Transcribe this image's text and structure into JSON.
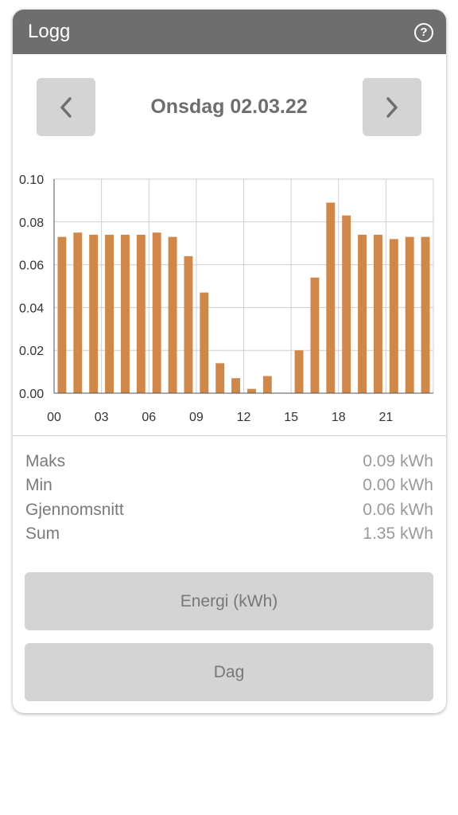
{
  "header": {
    "title": "Logg",
    "help_glyph": "?"
  },
  "nav": {
    "date": "Onsdag 02.03.22",
    "prev_icon": "chevron-left-icon",
    "next_icon": "chevron-right-icon"
  },
  "colors": {
    "bar": "#d0874a",
    "header_bg": "#6e6e6e",
    "button_bg": "#d4d4d4"
  },
  "chart_data": {
    "type": "bar",
    "categories": [
      "00",
      "01",
      "02",
      "03",
      "04",
      "05",
      "06",
      "07",
      "08",
      "09",
      "10",
      "11",
      "12",
      "13",
      "14",
      "15",
      "16",
      "17",
      "18",
      "19",
      "20",
      "21",
      "22",
      "23"
    ],
    "values": [
      0.073,
      0.075,
      0.074,
      0.074,
      0.074,
      0.074,
      0.075,
      0.073,
      0.064,
      0.047,
      0.014,
      0.007,
      0.002,
      0.008,
      0.0,
      0.02,
      0.054,
      0.089,
      0.083,
      0.074,
      0.074,
      0.072,
      0.073,
      0.073
    ],
    "x_tick_labels": [
      "00",
      "03",
      "06",
      "09",
      "12",
      "15",
      "18",
      "21"
    ],
    "y_ticks": [
      "0.00",
      "0.02",
      "0.04",
      "0.06",
      "0.08",
      "0.10"
    ],
    "ylim": [
      0,
      0.1
    ],
    "grid": true
  },
  "stats": [
    {
      "label": "Maks",
      "value": "0.09 kWh"
    },
    {
      "label": "Min",
      "value": "0.00 kWh"
    },
    {
      "label": "Gjennomsnitt",
      "value": "0.06 kWh"
    },
    {
      "label": "Sum",
      "value": "1.35 kWh"
    }
  ],
  "buttons": {
    "energy": "Energi (kWh)",
    "period": "Dag"
  }
}
